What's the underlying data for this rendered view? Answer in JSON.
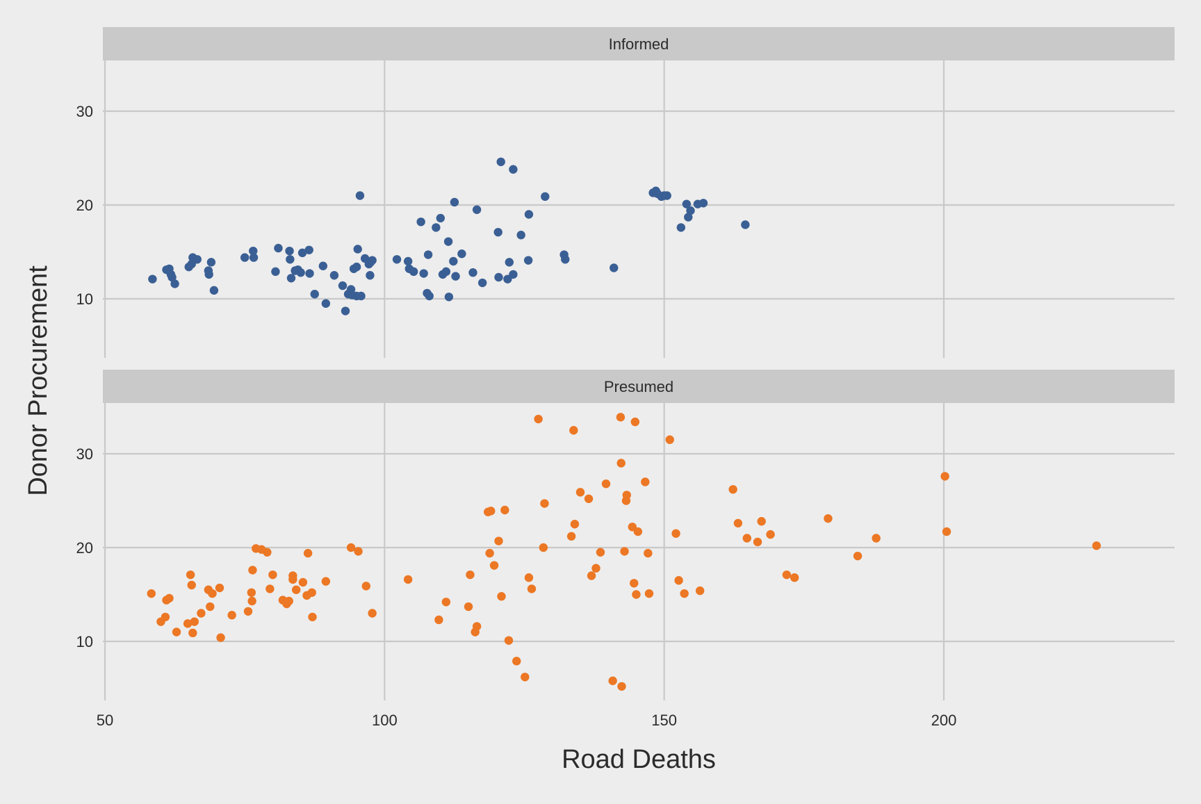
{
  "chart_data": {
    "type": "scatter",
    "xlabel": "Road Deaths",
    "ylabel": "Donor Procurement",
    "xlim": [
      50,
      243
    ],
    "ylim": [
      4.5,
      35.5
    ],
    "x_ticks": [
      50,
      100,
      150,
      200
    ],
    "y_ticks": [
      10,
      20,
      30
    ],
    "x_tick_labels": [
      "50",
      "100",
      "150",
      "200"
    ],
    "y_tick_labels": [
      "10",
      "20",
      "30"
    ],
    "grid": true,
    "legend": "none",
    "colors": {
      "Informed": "#3a5f94",
      "Presumed": "#ec7724",
      "panel_bg": "#ededed",
      "strip_bg": "#c9c9c9",
      "grid": "#c9c9c9"
    },
    "panels": [
      {
        "name": "Informed",
        "strip_label": "Informed",
        "series": {
          "name": "Informed",
          "points": [
            [
              58.5,
              12.1
            ],
            [
              61,
              13.1
            ],
            [
              61.5,
              13.2
            ],
            [
              61.8,
              12.6
            ],
            [
              62,
              12.3
            ],
            [
              62.5,
              11.6
            ],
            [
              65,
              13.4
            ],
            [
              65.5,
              13.7
            ],
            [
              65.7,
              14.4
            ],
            [
              66.5,
              14.2
            ],
            [
              68.5,
              13.0
            ],
            [
              68.6,
              12.6
            ],
            [
              69,
              13.9
            ],
            [
              69.5,
              10.9
            ],
            [
              75,
              14.4
            ],
            [
              76.5,
              15.1
            ],
            [
              76.6,
              14.4
            ],
            [
              80.5,
              12.9
            ],
            [
              81,
              15.4
            ],
            [
              83,
              15.1
            ],
            [
              83.1,
              14.2
            ],
            [
              83.3,
              12.2
            ],
            [
              84,
              13.0
            ],
            [
              84.5,
              13.1
            ],
            [
              85,
              12.8
            ],
            [
              85.3,
              14.9
            ],
            [
              86.5,
              15.2
            ],
            [
              86.6,
              12.7
            ],
            [
              87.5,
              10.5
            ],
            [
              89,
              13.5
            ],
            [
              89.5,
              9.5
            ],
            [
              91,
              12.5
            ],
            [
              92.5,
              11.4
            ],
            [
              93,
              8.7
            ],
            [
              93.5,
              10.5
            ],
            [
              94,
              11.0
            ],
            [
              94.2,
              10.4
            ],
            [
              94.5,
              13.2
            ],
            [
              95,
              10.3
            ],
            [
              95,
              13.4
            ],
            [
              95.2,
              15.3
            ],
            [
              95.6,
              21.0
            ],
            [
              95.8,
              10.3
            ],
            [
              96.5,
              14.3
            ],
            [
              97.2,
              13.7
            ],
            [
              97.4,
              12.5
            ],
            [
              97.5,
              13.9
            ],
            [
              97.8,
              14.1
            ],
            [
              102.2,
              14.2
            ],
            [
              104.2,
              14.0
            ],
            [
              104.4,
              13.2
            ],
            [
              105.2,
              12.9
            ],
            [
              106.5,
              18.2
            ],
            [
              107,
              12.7
            ],
            [
              107.6,
              10.6
            ],
            [
              107.8,
              14.7
            ],
            [
              108,
              10.3
            ],
            [
              109.2,
              17.6
            ],
            [
              110,
              18.6
            ],
            [
              110.4,
              12.6
            ],
            [
              111.0,
              12.9
            ],
            [
              111.4,
              16.1
            ],
            [
              111.5,
              10.2
            ],
            [
              112.3,
              14.0
            ],
            [
              112.5,
              20.3
            ],
            [
              112.7,
              12.4
            ],
            [
              113.8,
              14.8
            ],
            [
              115.8,
              12.8
            ],
            [
              116.5,
              19.5
            ],
            [
              117.5,
              11.7
            ],
            [
              120.3,
              17.1
            ],
            [
              120.4,
              12.3
            ],
            [
              120.8,
              24.6
            ],
            [
              122,
              12.1
            ],
            [
              122.3,
              13.9
            ],
            [
              123,
              12.6
            ],
            [
              123,
              23.8
            ],
            [
              124.4,
              16.8
            ],
            [
              125.7,
              14.1
            ],
            [
              125.8,
              19.0
            ],
            [
              128.7,
              20.9
            ],
            [
              132.1,
              14.7
            ],
            [
              132.3,
              14.2
            ],
            [
              141,
              13.3
            ],
            [
              148,
              21.3
            ],
            [
              148.5,
              21.5
            ],
            [
              148.8,
              21.2
            ],
            [
              149.5,
              20.9
            ],
            [
              150,
              21.0
            ],
            [
              150.5,
              21.0
            ],
            [
              153,
              17.6
            ],
            [
              154,
              20.1
            ],
            [
              154.3,
              18.7
            ],
            [
              154.7,
              19.4
            ],
            [
              156,
              20.1
            ],
            [
              157,
              20.2
            ],
            [
              164.5,
              17.9
            ]
          ]
        }
      },
      {
        "name": "Presumed",
        "strip_label": "Presumed",
        "series": {
          "name": "Presumed",
          "points": [
            [
              58.3,
              15.1
            ],
            [
              60,
              12.1
            ],
            [
              60.8,
              12.6
            ],
            [
              61,
              14.4
            ],
            [
              61.5,
              14.6
            ],
            [
              62.8,
              11.0
            ],
            [
              64.8,
              11.9
            ],
            [
              65.3,
              17.1
            ],
            [
              65.5,
              16.0
            ],
            [
              65.7,
              10.9
            ],
            [
              66,
              12.1
            ],
            [
              67.2,
              13.0
            ],
            [
              68.5,
              15.5
            ],
            [
              68.8,
              13.7
            ],
            [
              69.2,
              15.1
            ],
            [
              70.5,
              15.7
            ],
            [
              70.7,
              10.4
            ],
            [
              72.7,
              12.8
            ],
            [
              75.6,
              13.2
            ],
            [
              76.2,
              15.2
            ],
            [
              76.3,
              14.3
            ],
            [
              76.4,
              17.6
            ],
            [
              77,
              19.9
            ],
            [
              78,
              19.8
            ],
            [
              79,
              19.5
            ],
            [
              79.5,
              15.6
            ],
            [
              80,
              17.1
            ],
            [
              81.8,
              14.4
            ],
            [
              82.5,
              14.0
            ],
            [
              82.9,
              14.3
            ],
            [
              83.6,
              16.6
            ],
            [
              83.6,
              17.0
            ],
            [
              84.2,
              15.5
            ],
            [
              85.4,
              16.3
            ],
            [
              86.1,
              14.9
            ],
            [
              86.3,
              19.4
            ],
            [
              87,
              15.2
            ],
            [
              87.1,
              12.6
            ],
            [
              89.5,
              16.4
            ],
            [
              94,
              20.0
            ],
            [
              95.3,
              19.6
            ],
            [
              96.7,
              15.9
            ],
            [
              97.8,
              13.0
            ],
            [
              104.2,
              16.6
            ],
            [
              109.7,
              12.3
            ],
            [
              111,
              14.2
            ],
            [
              115,
              13.7
            ],
            [
              115.3,
              17.1
            ],
            [
              116.2,
              11.0
            ],
            [
              116.5,
              11.6
            ],
            [
              118.5,
              23.8
            ],
            [
              118.8,
              19.4
            ],
            [
              119,
              23.9
            ],
            [
              119.6,
              18.1
            ],
            [
              120.4,
              20.7
            ],
            [
              120.9,
              14.8
            ],
            [
              121.5,
              24.0
            ],
            [
              122.2,
              10.1
            ],
            [
              123.6,
              7.9
            ],
            [
              125.1,
              6.2
            ],
            [
              125.8,
              16.8
            ],
            [
              126.3,
              15.6
            ],
            [
              127.5,
              33.7
            ],
            [
              128.4,
              20.0
            ],
            [
              128.6,
              24.7
            ],
            [
              133.4,
              21.2
            ],
            [
              133.8,
              32.5
            ],
            [
              134,
              22.5
            ],
            [
              135,
              25.9
            ],
            [
              136.5,
              25.2
            ],
            [
              137,
              17.0
            ],
            [
              137.8,
              17.8
            ],
            [
              138.6,
              19.5
            ],
            [
              139.6,
              26.8
            ],
            [
              140.8,
              5.8
            ],
            [
              142.2,
              33.9
            ],
            [
              142.3,
              29.0
            ],
            [
              142.4,
              5.2
            ],
            [
              142.9,
              19.6
            ],
            [
              143.2,
              25.0
            ],
            [
              143.3,
              25.6
            ],
            [
              144.3,
              22.2
            ],
            [
              144.6,
              16.2
            ],
            [
              144.8,
              33.4
            ],
            [
              145,
              15.0
            ],
            [
              145.3,
              21.7
            ],
            [
              146.6,
              27.0
            ],
            [
              147.1,
              19.4
            ],
            [
              147.3,
              15.1
            ],
            [
              151,
              31.5
            ],
            [
              152.1,
              21.5
            ],
            [
              152.6,
              16.5
            ],
            [
              153.6,
              15.1
            ],
            [
              156.4,
              15.4
            ],
            [
              162.3,
              26.2
            ],
            [
              163.2,
              22.6
            ],
            [
              164.8,
              21.0
            ],
            [
              166.7,
              20.6
            ],
            [
              167.4,
              22.8
            ],
            [
              169,
              21.4
            ],
            [
              171.9,
              17.1
            ],
            [
              173.3,
              16.8
            ],
            [
              179.3,
              23.1
            ],
            [
              184.6,
              19.1
            ],
            [
              187.9,
              21.0
            ],
            [
              200.2,
              27.6
            ],
            [
              200.5,
              21.7
            ],
            [
              227.3,
              20.2
            ]
          ]
        }
      }
    ]
  }
}
